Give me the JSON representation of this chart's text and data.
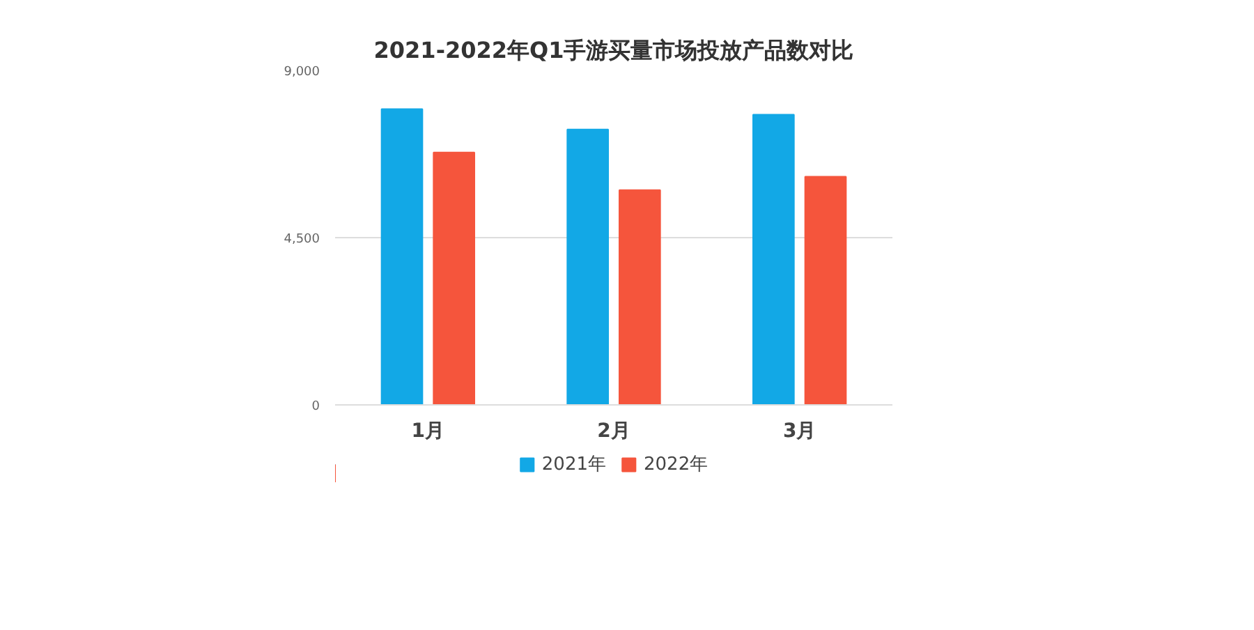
{
  "chart_data": {
    "type": "bar",
    "title": "2021-2022年Q1手游买量市场投放产品数对比",
    "categories": [
      "1月",
      "2月",
      "3月"
    ],
    "series": [
      {
        "name": "2021年",
        "color": "#12a8e6",
        "values": [
          7960,
          7410,
          7810
        ]
      },
      {
        "name": "2022年",
        "color": "#f5553c",
        "values": [
          6790,
          5780,
          6140
        ]
      }
    ],
    "ylim": [
      0,
      9000
    ],
    "yticks": [
      0,
      {
        "value": 4500,
        "label": "4,500"
      },
      {
        "value": 9000,
        "label": "9,000"
      }
    ],
    "grid": "y",
    "legend": "bottom"
  }
}
